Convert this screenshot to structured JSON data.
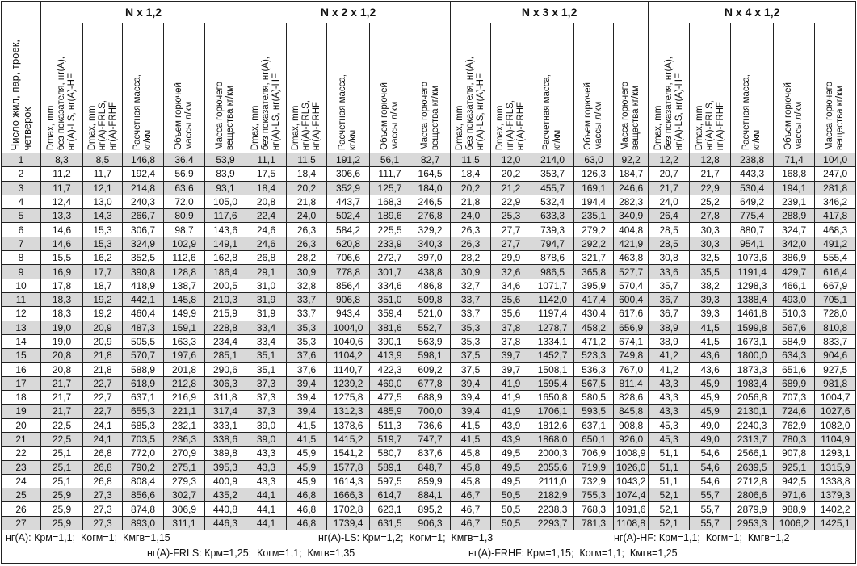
{
  "header": {
    "first_col": "Число жил, пар, троек,\nчетверок",
    "groups": [
      "N x 1,2",
      "N x 2 x 1,2",
      "N x 3 x 1,2",
      "N x 4 x 1,2"
    ],
    "subcols": [
      "Dmax, mm\nбез показателя, нг(А),\nнг(А)-LS, нг(А)-HF",
      "Dmax, mm\nнг(А)-FRLS,\nнг(А)-FRHF",
      "Расчетная масса,\nкг/км",
      "Объем горючей\nмассы л/км",
      "Масса горючего\nвещества кг/км"
    ]
  },
  "rows": [
    [
      "1",
      "8,3",
      "8,5",
      "146,8",
      "36,4",
      "53,9",
      "11,1",
      "11,5",
      "191,2",
      "56,1",
      "82,7",
      "11,5",
      "12,0",
      "214,0",
      "63,0",
      "92,2",
      "12,2",
      "12,8",
      "238,8",
      "71,4",
      "104,0"
    ],
    [
      "2",
      "11,2",
      "11,7",
      "192,4",
      "56,9",
      "83,9",
      "17,5",
      "18,4",
      "306,6",
      "111,7",
      "164,5",
      "18,4",
      "20,2",
      "353,7",
      "126,3",
      "184,7",
      "20,7",
      "21,7",
      "443,3",
      "168,8",
      "247,0"
    ],
    [
      "3",
      "11,7",
      "12,1",
      "214,8",
      "63,6",
      "93,1",
      "18,4",
      "20,2",
      "352,9",
      "125,7",
      "184,0",
      "20,2",
      "21,2",
      "455,7",
      "169,1",
      "246,6",
      "21,7",
      "22,9",
      "530,4",
      "194,1",
      "281,8"
    ],
    [
      "4",
      "12,4",
      "13,0",
      "240,3",
      "72,0",
      "105,0",
      "20,8",
      "21,8",
      "443,7",
      "168,3",
      "246,5",
      "21,8",
      "22,9",
      "532,4",
      "194,4",
      "282,3",
      "24,0",
      "25,2",
      "649,2",
      "239,1",
      "346,2"
    ],
    [
      "5",
      "13,3",
      "14,3",
      "266,7",
      "80,9",
      "117,6",
      "22,4",
      "24,0",
      "502,4",
      "189,6",
      "276,8",
      "24,0",
      "25,3",
      "633,3",
      "235,1",
      "340,9",
      "26,4",
      "27,8",
      "775,4",
      "288,9",
      "417,8"
    ],
    [
      "6",
      "14,6",
      "15,3",
      "306,7",
      "98,7",
      "143,6",
      "24,6",
      "26,3",
      "584,2",
      "225,5",
      "329,2",
      "26,3",
      "27,7",
      "739,3",
      "279,2",
      "404,8",
      "28,5",
      "30,3",
      "880,7",
      "324,7",
      "468,3"
    ],
    [
      "7",
      "14,6",
      "15,3",
      "324,9",
      "102,9",
      "149,1",
      "24,6",
      "26,3",
      "620,8",
      "233,9",
      "340,3",
      "26,3",
      "27,7",
      "794,7",
      "292,2",
      "421,9",
      "28,5",
      "30,3",
      "954,1",
      "342,0",
      "491,2"
    ],
    [
      "8",
      "15,5",
      "16,2",
      "352,5",
      "112,6",
      "162,8",
      "26,8",
      "28,2",
      "706,6",
      "272,7",
      "397,0",
      "28,2",
      "29,9",
      "878,6",
      "321,7",
      "463,8",
      "30,8",
      "32,5",
      "1073,6",
      "386,9",
      "555,4"
    ],
    [
      "9",
      "16,9",
      "17,7",
      "390,8",
      "128,8",
      "186,4",
      "29,1",
      "30,9",
      "778,8",
      "301,7",
      "438,8",
      "30,9",
      "32,6",
      "986,5",
      "365,8",
      "527,7",
      "33,6",
      "35,5",
      "1191,4",
      "429,7",
      "616,4"
    ],
    [
      "10",
      "17,8",
      "18,7",
      "418,9",
      "138,7",
      "200,5",
      "31,0",
      "32,8",
      "856,4",
      "334,6",
      "486,8",
      "32,7",
      "34,6",
      "1071,7",
      "395,9",
      "570,4",
      "35,7",
      "38,2",
      "1298,3",
      "466,1",
      "667,9"
    ],
    [
      "11",
      "18,3",
      "19,2",
      "442,1",
      "145,8",
      "210,3",
      "31,9",
      "33,7",
      "906,8",
      "351,0",
      "509,8",
      "33,7",
      "35,6",
      "1142,0",
      "417,4",
      "600,4",
      "36,7",
      "39,3",
      "1388,4",
      "493,0",
      "705,1"
    ],
    [
      "12",
      "18,3",
      "19,2",
      "460,4",
      "149,9",
      "215,9",
      "31,9",
      "33,7",
      "943,4",
      "359,4",
      "521,0",
      "33,7",
      "35,6",
      "1197,4",
      "430,4",
      "617,6",
      "36,7",
      "39,3",
      "1461,8",
      "510,3",
      "728,0"
    ],
    [
      "13",
      "19,0",
      "20,9",
      "487,3",
      "159,1",
      "228,8",
      "33,4",
      "35,3",
      "1004,0",
      "381,6",
      "552,7",
      "35,3",
      "37,8",
      "1278,7",
      "458,2",
      "656,9",
      "38,9",
      "41,5",
      "1599,8",
      "567,6",
      "810,8"
    ],
    [
      "14",
      "19,0",
      "20,9",
      "505,5",
      "163,3",
      "234,4",
      "33,4",
      "35,3",
      "1040,6",
      "390,1",
      "563,9",
      "35,3",
      "37,8",
      "1334,1",
      "471,2",
      "674,1",
      "38,9",
      "41,5",
      "1673,1",
      "584,9",
      "833,7"
    ],
    [
      "15",
      "20,8",
      "21,8",
      "570,7",
      "197,6",
      "285,1",
      "35,1",
      "37,6",
      "1104,2",
      "413,9",
      "598,1",
      "37,5",
      "39,7",
      "1452,7",
      "523,3",
      "749,8",
      "41,2",
      "43,6",
      "1800,0",
      "634,3",
      "904,6"
    ],
    [
      "16",
      "20,8",
      "21,8",
      "588,9",
      "201,8",
      "290,6",
      "35,1",
      "37,6",
      "1140,7",
      "422,3",
      "609,2",
      "37,5",
      "39,7",
      "1508,1",
      "536,3",
      "767,0",
      "41,2",
      "43,6",
      "1873,3",
      "651,6",
      "927,5"
    ],
    [
      "17",
      "21,7",
      "22,7",
      "618,9",
      "212,8",
      "306,3",
      "37,3",
      "39,4",
      "1239,2",
      "469,0",
      "677,8",
      "39,4",
      "41,9",
      "1595,4",
      "567,5",
      "811,4",
      "43,3",
      "45,9",
      "1983,4",
      "689,9",
      "981,8"
    ],
    [
      "18",
      "21,7",
      "22,7",
      "637,1",
      "216,9",
      "311,8",
      "37,3",
      "39,4",
      "1275,8",
      "477,5",
      "688,9",
      "39,4",
      "41,9",
      "1650,8",
      "580,5",
      "828,6",
      "43,3",
      "45,9",
      "2056,8",
      "707,3",
      "1004,7"
    ],
    [
      "19",
      "21,7",
      "22,7",
      "655,3",
      "221,1",
      "317,4",
      "37,3",
      "39,4",
      "1312,3",
      "485,9",
      "700,0",
      "39,4",
      "41,9",
      "1706,1",
      "593,5",
      "845,8",
      "43,3",
      "45,9",
      "2130,1",
      "724,6",
      "1027,6"
    ],
    [
      "20",
      "22,5",
      "24,1",
      "685,3",
      "232,1",
      "333,1",
      "39,0",
      "41,5",
      "1378,6",
      "511,3",
      "736,6",
      "41,5",
      "43,9",
      "1812,6",
      "637,1",
      "908,8",
      "45,3",
      "49,0",
      "2240,3",
      "762,9",
      "1082,0"
    ],
    [
      "21",
      "22,5",
      "24,1",
      "703,5",
      "236,3",
      "338,6",
      "39,0",
      "41,5",
      "1415,2",
      "519,7",
      "747,7",
      "41,5",
      "43,9",
      "1868,0",
      "650,1",
      "926,0",
      "45,3",
      "49,0",
      "2313,7",
      "780,3",
      "1104,9"
    ],
    [
      "22",
      "25,1",
      "26,8",
      "772,0",
      "270,9",
      "389,8",
      "43,3",
      "45,9",
      "1541,2",
      "580,7",
      "837,6",
      "45,8",
      "49,5",
      "2000,3",
      "706,9",
      "1008,9",
      "51,1",
      "54,6",
      "2566,1",
      "907,8",
      "1293,1"
    ],
    [
      "23",
      "25,1",
      "26,8",
      "790,2",
      "275,1",
      "395,3",
      "43,3",
      "45,9",
      "1577,8",
      "589,1",
      "848,7",
      "45,8",
      "49,5",
      "2055,6",
      "719,9",
      "1026,0",
      "51,1",
      "54,6",
      "2639,5",
      "925,1",
      "1315,9"
    ],
    [
      "24",
      "25,1",
      "26,8",
      "808,4",
      "279,3",
      "400,9",
      "43,3",
      "45,9",
      "1614,3",
      "597,5",
      "859,9",
      "45,8",
      "49,5",
      "2111,0",
      "732,9",
      "1043,2",
      "51,1",
      "54,6",
      "2712,8",
      "942,5",
      "1338,8"
    ],
    [
      "25",
      "25,9",
      "27,3",
      "856,6",
      "302,7",
      "435,2",
      "44,1",
      "46,8",
      "1666,3",
      "614,7",
      "884,1",
      "46,7",
      "50,5",
      "2182,9",
      "755,3",
      "1074,4",
      "52,1",
      "55,7",
      "2806,6",
      "971,6",
      "1379,3"
    ],
    [
      "26",
      "25,9",
      "27,3",
      "874,8",
      "306,9",
      "440,8",
      "44,1",
      "46,8",
      "1702,8",
      "623,1",
      "895,2",
      "46,7",
      "50,5",
      "2238,3",
      "768,3",
      "1091,6",
      "52,1",
      "55,7",
      "2879,9",
      "988,9",
      "1402,2"
    ],
    [
      "27",
      "25,9",
      "27,3",
      "893,0",
      "311,1",
      "446,3",
      "44,1",
      "46,8",
      "1739,4",
      "631,5",
      "906,3",
      "46,7",
      "50,5",
      "2293,7",
      "781,3",
      "1108,8",
      "52,1",
      "55,7",
      "2953,3",
      "1006,2",
      "1425,1"
    ]
  ],
  "footer": {
    "ng_a": "нг(А): Крм=1,1;  Когм=1;  Кмгв=1,15",
    "ng_a_ls": "нг(А)-LS: Крм=1,2;  Когм=1;  Кмгв=1,3",
    "ng_a_hf": "нг(А)-HF: Крм=1,1;  Когм=1;  Кмгв=1,2",
    "ng_a_frls": "нг(А)-FRLS: Крм=1,25;  Когм=1,1;  Кмгв=1,35",
    "ng_a_frhf": "нг(А)-FRHF: Крм=1,15;  Когм=1,1;  Кмгв=1,25"
  }
}
